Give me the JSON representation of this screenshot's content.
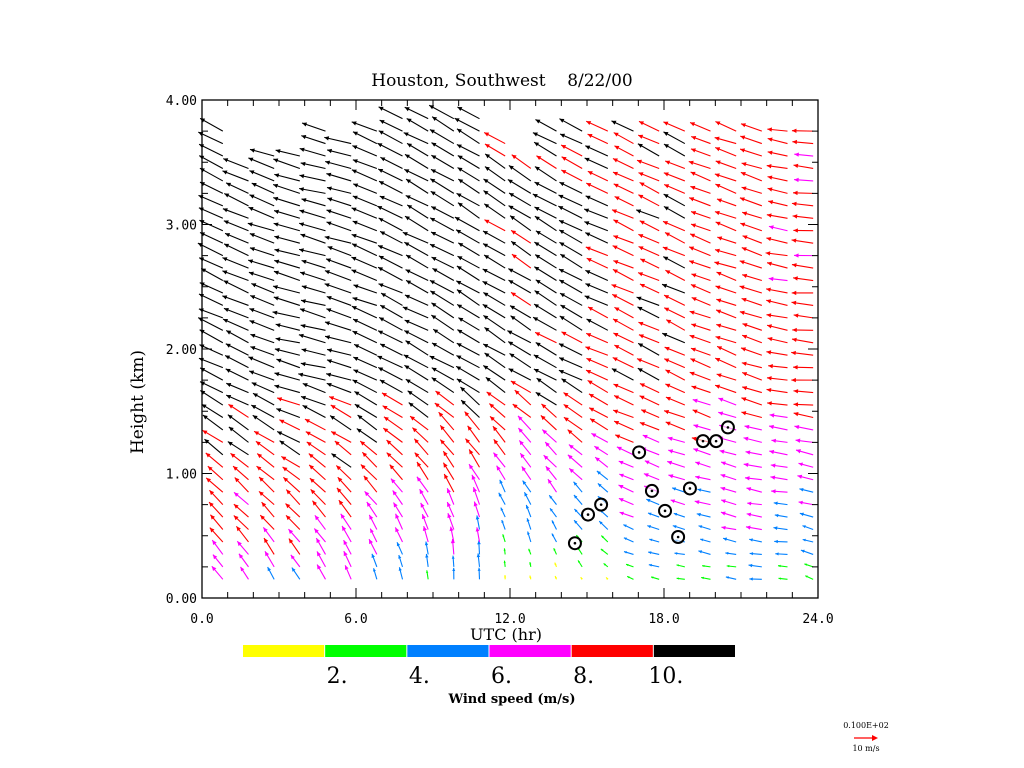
{
  "chart_data": {
    "type": "wind-profile-time-height",
    "title": "Houston, Southwest    8/22/00",
    "xlabel": "UTC (hr)",
    "ylabel": "Height (km)",
    "xlim": [
      0,
      24
    ],
    "ylim": [
      0,
      4
    ],
    "x_ticks": [
      "0.0",
      "6.0",
      "12.0",
      "18.0",
      "24.0"
    ],
    "x_tick_values": [
      0,
      6,
      12,
      18,
      24
    ],
    "y_ticks": [
      "0.00",
      "1.00",
      "2.00",
      "3.00",
      "4.00"
    ],
    "y_tick_values": [
      0,
      1,
      2,
      3,
      4
    ],
    "x_minor_step": 1,
    "y_minor_step": 0.25,
    "colorbar": {
      "label": "Wind speed (m/s)",
      "colors": [
        "#ffff00",
        "#00ff00",
        "#0080ff",
        "#ff00ff",
        "#ff0000",
        "#000000"
      ],
      "boundaries": [
        0,
        2,
        4,
        6,
        8,
        10,
        12
      ],
      "tick_labels": [
        "2.",
        "4.",
        "6.",
        "8.",
        "10."
      ]
    },
    "reference_vector": {
      "value_label": "0.100E+02",
      "unit_label": "10 m/s",
      "speed": 10,
      "color": "#ff0000"
    },
    "profile_interval_hr": 1,
    "gate_spacing_km": 0.1,
    "profiles": [
      {
        "t": 0.5,
        "zmin": 0.15,
        "zmax": 3.75,
        "dir_low": 145,
        "dir_high": 115,
        "spd_low": 6.5,
        "spd_high": 11
      },
      {
        "t": 1.5,
        "zmin": 0.15,
        "zmax": 3.45,
        "dir_low": 145,
        "dir_high": 115,
        "spd_low": 6.5,
        "spd_high": 11
      },
      {
        "t": 2.5,
        "zmin": 0.15,
        "zmax": 3.55,
        "dir_low": 148,
        "dir_high": 110,
        "spd_low": 6.5,
        "spd_high": 11
      },
      {
        "t": 3.5,
        "zmin": 0.15,
        "zmax": 3.55,
        "dir_low": 150,
        "dir_high": 105,
        "spd_low": 6.5,
        "spd_high": 11
      },
      {
        "t": 4.5,
        "zmin": 0.15,
        "zmax": 3.75,
        "dir_low": 152,
        "dir_high": 105,
        "spd_low": 6.5,
        "spd_high": 11
      },
      {
        "t": 5.5,
        "zmin": 0.15,
        "zmax": 3.7,
        "dir_low": 155,
        "dir_high": 108,
        "spd_low": 6.5,
        "spd_high": 11
      },
      {
        "t": 6.5,
        "zmin": 0.15,
        "zmax": 3.8,
        "dir_low": 160,
        "dir_high": 112,
        "spd_low": 5.5,
        "spd_high": 11
      },
      {
        "t": 7.5,
        "zmin": 0.15,
        "zmax": 3.85,
        "dir_low": 165,
        "dir_high": 115,
        "spd_low": 5.0,
        "spd_high": 11
      },
      {
        "t": 8.5,
        "zmin": 0.15,
        "zmax": 3.85,
        "dir_low": 172,
        "dir_high": 118,
        "spd_low": 4.5,
        "spd_high": 11
      },
      {
        "t": 9.5,
        "zmin": 0.15,
        "zmax": 3.85,
        "dir_low": 178,
        "dir_high": 120,
        "spd_low": 4.5,
        "spd_high": 11
      },
      {
        "t": 10.5,
        "zmin": 0.15,
        "zmax": 3.85,
        "dir_low": 180,
        "dir_high": 122,
        "spd_low": 4.2,
        "spd_high": 11
      },
      {
        "t": 11.5,
        "zmin": 0.15,
        "zmax": 3.7,
        "dir_low": 175,
        "dir_high": 122,
        "spd_low": 1.5,
        "spd_high": 10.5
      },
      {
        "t": 12.5,
        "zmin": 0.15,
        "zmax": 3.5,
        "dir_low": 170,
        "dir_high": 122,
        "spd_low": 1.5,
        "spd_high": 10.5
      },
      {
        "t": 13.5,
        "zmin": 0.15,
        "zmax": 3.75,
        "dir_low": 160,
        "dir_high": 120,
        "spd_low": 1.5,
        "spd_high": 10.5
      },
      {
        "t": 14.5,
        "zmin": 0.15,
        "zmax": 3.75,
        "dir_low": 150,
        "dir_high": 118,
        "spd_low": 1.5,
        "spd_high": 10.5
      },
      {
        "t": 15.5,
        "zmin": 0.15,
        "zmax": 3.8,
        "dir_low": 135,
        "dir_high": 115,
        "spd_low": 1.5,
        "spd_high": 10
      },
      {
        "t": 16.5,
        "zmin": 0.15,
        "zmax": 3.8,
        "dir_low": 110,
        "dir_high": 115,
        "spd_low": 3.0,
        "spd_high": 9.5
      },
      {
        "t": 17.5,
        "zmin": 0.15,
        "zmax": 3.8,
        "dir_low": 105,
        "dir_high": 115,
        "spd_low": 3.0,
        "spd_high": 9.5
      },
      {
        "t": 18.5,
        "zmin": 0.15,
        "zmax": 3.8,
        "dir_low": 100,
        "dir_high": 115,
        "spd_low": 3.0,
        "spd_high": 9.5
      },
      {
        "t": 19.5,
        "zmin": 0.15,
        "zmax": 3.8,
        "dir_low": 100,
        "dir_high": 112,
        "spd_low": 3.5,
        "spd_high": 9.0
      },
      {
        "t": 20.5,
        "zmin": 0.15,
        "zmax": 3.8,
        "dir_low": 100,
        "dir_high": 110,
        "spd_low": 4.0,
        "spd_high": 9.0
      },
      {
        "t": 21.5,
        "zmin": 0.15,
        "zmax": 3.8,
        "dir_low": 95,
        "dir_high": 108,
        "spd_low": 4.5,
        "spd_high": 9.0
      },
      {
        "t": 22.5,
        "zmin": 0.15,
        "zmax": 3.8,
        "dir_low": 95,
        "dir_high": 100,
        "spd_low": 4.0,
        "spd_high": 8.5
      },
      {
        "t": 23.5,
        "zmin": 0.15,
        "zmax": 3.8,
        "dir_low": 110,
        "dir_high": 95,
        "spd_low": 4.0,
        "spd_high": 8.5
      }
    ],
    "markers": {
      "type": "circle",
      "points": [
        {
          "x": 14.53,
          "y": 0.44
        },
        {
          "x": 15.04,
          "y": 0.67
        },
        {
          "x": 15.55,
          "y": 0.75
        },
        {
          "x": 17.03,
          "y": 1.17
        },
        {
          "x": 17.53,
          "y": 0.86
        },
        {
          "x": 18.04,
          "y": 0.7
        },
        {
          "x": 18.55,
          "y": 0.49
        },
        {
          "x": 19.01,
          "y": 0.88
        },
        {
          "x": 19.52,
          "y": 1.26
        },
        {
          "x": 20.03,
          "y": 1.26
        },
        {
          "x": 20.49,
          "y": 1.37
        }
      ]
    },
    "grid": false,
    "legend": "bottom"
  }
}
